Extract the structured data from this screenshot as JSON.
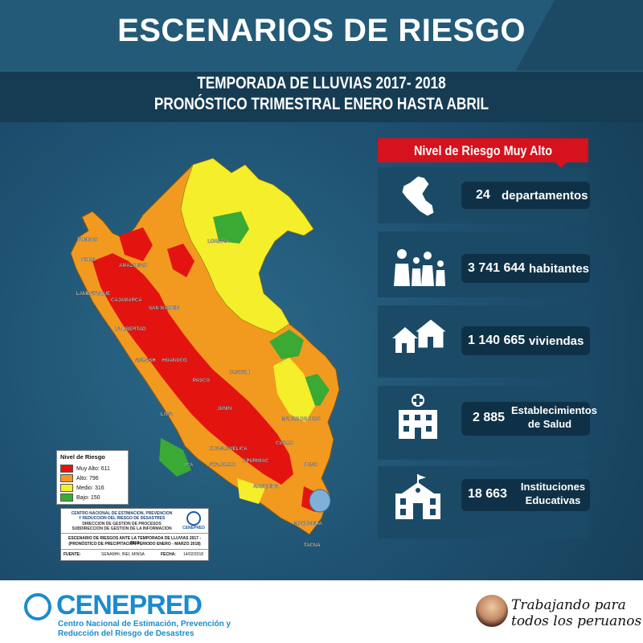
{
  "header": {
    "title": "ESCENARIOS DE RIESGO",
    "subtitle_line1": "TEMPORADA DE LLUVIAS 2017- 2018",
    "subtitle_line2": "PRONÓSTICO TRIMESTRAL ENERO HASTA ABRIL"
  },
  "map": {
    "region_labels": [
      "TUMBES",
      "PIURA",
      "LAMBAYEQUE",
      "AMAZONAS",
      "CAJAMARCA",
      "SAN MARTIN",
      "LORETO",
      "LA LIBERTAD",
      "ANCASH",
      "HUANUCO",
      "PASCO",
      "UCAYALI",
      "LIMA",
      "JUNIN",
      "MADRE DE DIOS",
      "HUANCAVELICA",
      "CUSCO",
      "ICA",
      "AYACUCHO",
      "APURIMAC",
      "PUNO",
      "AREQUIPA",
      "MOQUEGUA",
      "TACNA"
    ],
    "colors": {
      "muy_alto": "#e3140f",
      "alto": "#f29a1f",
      "medio": "#f5ee2a",
      "bajo": "#3aaa35",
      "lake": "#7fb0d8"
    }
  },
  "legend": {
    "title": "Nivel de Riesgo",
    "items": [
      {
        "label": "Muy Alto: 611",
        "color": "#e3140f"
      },
      {
        "label": "Alto: 796",
        "color": "#f29a1f"
      },
      {
        "label": "Medio: 316",
        "color": "#f5ee2a"
      },
      {
        "label": "Bajo: 150",
        "color": "#3aaa35"
      }
    ]
  },
  "infobox": {
    "org_line1": "CENTRO NACIONAL DE ESTIMACION, PREVENCION",
    "org_line2": "Y REDUCCION DEL RIESGO DE DESASTRES",
    "dept_line1": "DIRECCION DE GESTION DE PROCESOS",
    "dept_line2": "SUBDIRECCION DE GESTION DE LA INFORMACION",
    "logo_text": "CENEPRED",
    "scenario_line1": "ESCENARIO DE RIESGOS ANTE LA TEMPORADA DE LLUVIAS 2017 - 2018",
    "scenario_line2": "(PRONÓSTICO DE PRECIPITACIÓN PERIODO ENERO - MARZO 2018)",
    "fuente_label": "FUENTE:",
    "fuente_value": "SENAMHI, INEI, MINSA",
    "fecha_label": "FECHA:",
    "fecha_value": "14/02/2018"
  },
  "panel": {
    "ribbon_title": "Nivel de Riesgo Muy Alto",
    "stats": [
      {
        "icon": "peru-map-icon",
        "number": "24",
        "label_line1": "departamentos",
        "label_line2": ""
      },
      {
        "icon": "people-icon",
        "number": "3 741 644",
        "label_line1": "habitantes",
        "label_line2": ""
      },
      {
        "icon": "houses-icon",
        "number": "1 140 665",
        "label_line1": "viviendas",
        "label_line2": ""
      },
      {
        "icon": "hospital-icon",
        "number": "2 885",
        "label_line1": "Establecimientos",
        "label_line2": "de Salud"
      },
      {
        "icon": "school-icon",
        "number": "18 663",
        "label_line1": "Instituciones",
        "label_line2": "Educativas"
      }
    ]
  },
  "footer": {
    "brand": "CENEPRED",
    "brand_sub1": "Centro Nacional de Estimación, Prevención y",
    "brand_sub2": "Reducción del Riesgo de Desastres",
    "slogan_line1": "Trabajando para",
    "slogan_line2": "todos los peruanos"
  }
}
